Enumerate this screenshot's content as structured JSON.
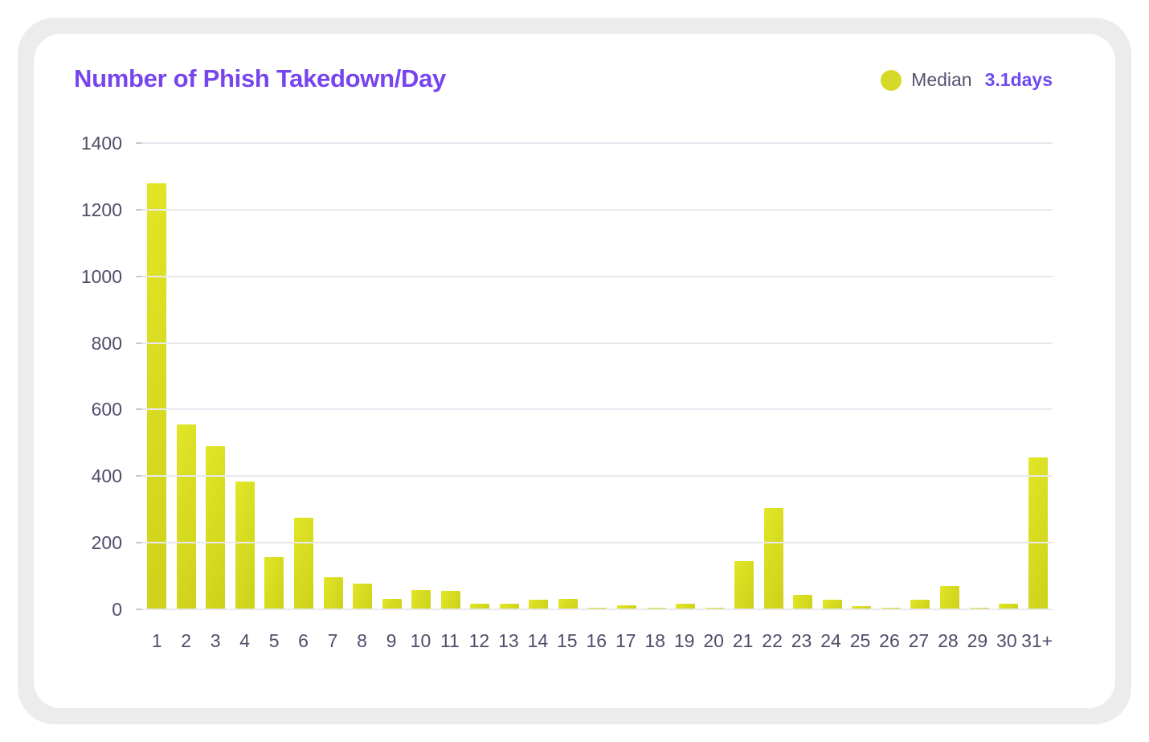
{
  "card": {
    "background_color": "#ffffff",
    "frame_color": "#ececec"
  },
  "chart_data": {
    "type": "bar",
    "title": "Number of Phish Takedown/Day",
    "title_color": "#7745ee",
    "legend": {
      "label": "Median",
      "value": "3.1days",
      "label_color": "#575270",
      "value_color": "#6d4af2",
      "dot_color": "#d6d929",
      "position": "top-right"
    },
    "categories": [
      "1",
      "2",
      "3",
      "4",
      "5",
      "6",
      "7",
      "8",
      "9",
      "10",
      "11",
      "12",
      "13",
      "14",
      "15",
      "16",
      "17",
      "18",
      "19",
      "20",
      "21",
      "22",
      "23",
      "24",
      "25",
      "26",
      "27",
      "28",
      "29",
      "30",
      "31+"
    ],
    "values": [
      1280,
      555,
      490,
      383,
      157,
      275,
      97,
      78,
      31,
      58,
      56,
      18,
      17,
      30,
      32,
      5,
      11,
      5,
      17,
      5,
      144,
      305,
      44,
      30,
      10,
      4,
      30,
      70,
      4,
      16,
      455
    ],
    "xlabel": "",
    "ylabel": "",
    "ylim": [
      0,
      1400
    ],
    "y_ticks": [
      0,
      200,
      400,
      600,
      800,
      1000,
      1200,
      1400
    ],
    "grid": "horizontal",
    "bar_color_light": "#e2e627",
    "bar_color_dark": "#cdd11a",
    "gridline_color": "#e9e7f0",
    "axis_label_color": "#524c6a"
  }
}
